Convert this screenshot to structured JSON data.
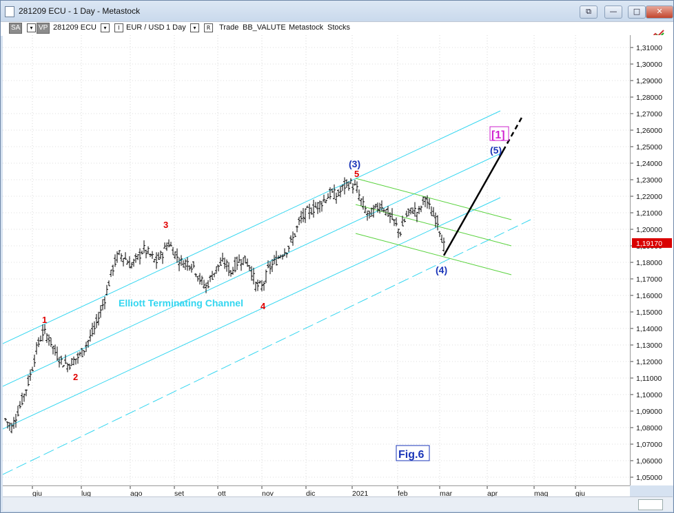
{
  "window": {
    "title": "281209 ECU - 1 Day - Metastock",
    "buttons": {
      "restore_icon": "restore-icon",
      "minimize": "—",
      "maximize": "□",
      "close": "✕"
    }
  },
  "toolbar": {
    "sa": "SA",
    "vp": "VP",
    "symbol": "281209 ECU",
    "instrument": "EUR / USD",
    "period": "1 Day",
    "r_box": "R",
    "dropdown_glyph": "▾",
    "indicator": "I",
    "trade": "Trade",
    "template": "BB_VALUTE",
    "group": "Metastock",
    "category": "Stocks"
  },
  "chart_data": {
    "type": "candlestick",
    "y_ticks": [
      "1,31000",
      "1,30000",
      "1,29000",
      "1,28000",
      "1,27000",
      "1,26000",
      "1,25000",
      "1,24000",
      "1,23000",
      "1,22000",
      "1,21000",
      "1,20000",
      "1,19000",
      "1,18000",
      "1,17000",
      "1,16000",
      "1,15000",
      "1,14000",
      "1,13000",
      "1,12000",
      "1,11000",
      "1,10000",
      "1,09000",
      "1,08000",
      "1,07000",
      "1,06000",
      "1,05000"
    ],
    "ylim": [
      1.045,
      1.3175
    ],
    "x_ticks": [
      "giu",
      "lug",
      "ago",
      "set",
      "ott",
      "nov",
      "dic",
      "2021",
      "feb",
      "mar",
      "apr",
      "mag",
      "giu"
    ],
    "last_price": "1,19170",
    "annotations": {
      "fig": "Fig.6",
      "channel_label": "Elliott Terminating Channel",
      "wave_1": "1",
      "wave_2": "2",
      "wave_3": "3",
      "wave_4": "4",
      "wave_5": "5",
      "wave_3_major": "(3)",
      "wave_4_major": "(4)",
      "wave_5_major": "(5)",
      "wave_1_bracket": "[1]"
    },
    "price_path": [
      1.085,
      1.08,
      1.09,
      1.1,
      1.112,
      1.128,
      1.138,
      1.134,
      1.125,
      1.12,
      1.118,
      1.121,
      1.124,
      1.131,
      1.138,
      1.148,
      1.16,
      1.175,
      1.185,
      1.183,
      1.178,
      1.182,
      1.188,
      1.185,
      1.18,
      1.185,
      1.192,
      1.186,
      1.18,
      1.18,
      1.178,
      1.17,
      1.165,
      1.172,
      1.178,
      1.18,
      1.174,
      1.18,
      1.182,
      1.178,
      1.166,
      1.165,
      1.176,
      1.18,
      1.185,
      1.188,
      1.195,
      1.205,
      1.21,
      1.212,
      1.215,
      1.218,
      1.222,
      1.22,
      1.226,
      1.228,
      1.225,
      1.215,
      1.208,
      1.212,
      1.215,
      1.21,
      1.205,
      1.198,
      1.208,
      1.212,
      1.21,
      1.22,
      1.21,
      1.205,
      1.19
    ]
  }
}
